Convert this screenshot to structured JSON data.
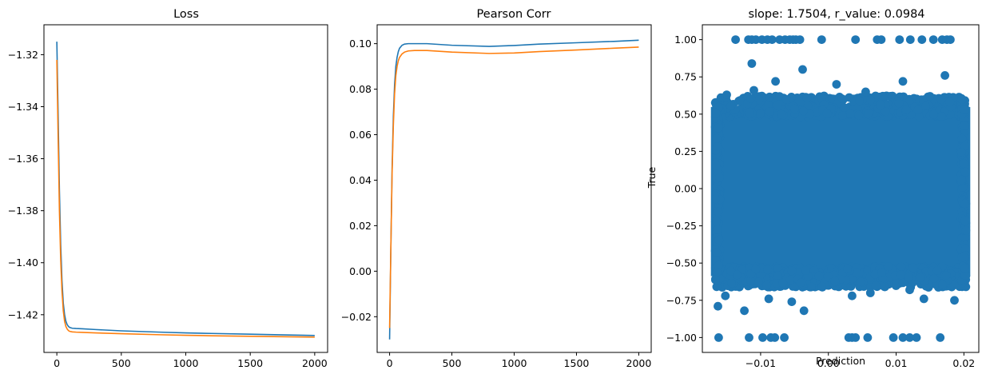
{
  "chart_data": [
    {
      "type": "line",
      "title": "Loss",
      "xlabel": "",
      "ylabel": "",
      "xlim": [
        -100,
        2100
      ],
      "ylim": [
        -1.4345,
        -1.3085
      ],
      "xticks": [
        0,
        500,
        1000,
        1500,
        2000
      ],
      "xtick_labels": [
        "0",
        "500",
        "1000",
        "1500",
        "2000"
      ],
      "yticks": [
        -1.42,
        -1.4,
        -1.38,
        -1.36,
        -1.34,
        -1.32
      ],
      "ytick_labels": [
        "−1.42",
        "−1.40",
        "−1.38",
        "−1.36",
        "−1.34",
        "−1.32"
      ],
      "grid": false,
      "series": [
        {
          "color": "#1f77b4",
          "x": [
            0,
            10,
            20,
            30,
            40,
            50,
            60,
            70,
            80,
            90,
            100,
            120,
            150,
            200,
            300,
            500,
            800,
            1000,
            1200,
            1500,
            1800,
            2000
          ],
          "y": [
            -1.315,
            -1.343,
            -1.372,
            -1.393,
            -1.407,
            -1.4155,
            -1.42,
            -1.4225,
            -1.4238,
            -1.4245,
            -1.4249,
            -1.4252,
            -1.4253,
            -1.4254,
            -1.4257,
            -1.4262,
            -1.4267,
            -1.427,
            -1.4272,
            -1.4275,
            -1.4278,
            -1.428
          ]
        },
        {
          "color": "#ff7f0e",
          "x": [
            0,
            10,
            20,
            30,
            40,
            50,
            60,
            70,
            80,
            90,
            100,
            120,
            150,
            200,
            300,
            500,
            800,
            1000,
            1200,
            1500,
            1800,
            2000
          ],
          "y": [
            -1.322,
            -1.352,
            -1.38,
            -1.399,
            -1.411,
            -1.4185,
            -1.4225,
            -1.4245,
            -1.4255,
            -1.4261,
            -1.4264,
            -1.4266,
            -1.4267,
            -1.4268,
            -1.427,
            -1.4273,
            -1.4277,
            -1.4279,
            -1.4281,
            -1.4283,
            -1.4285,
            -1.4286
          ]
        }
      ]
    },
    {
      "type": "line",
      "title": "Pearson Corr",
      "xlabel": "",
      "ylabel": "",
      "xlim": [
        -100,
        2100
      ],
      "ylim": [
        -0.0357,
        0.1083
      ],
      "xticks": [
        0,
        500,
        1000,
        1500,
        2000
      ],
      "xtick_labels": [
        "0",
        "500",
        "1000",
        "1500",
        "2000"
      ],
      "yticks": [
        -0.02,
        0.0,
        0.02,
        0.04,
        0.06,
        0.08,
        0.1
      ],
      "ytick_labels": [
        "−0.02",
        "0.00",
        "0.02",
        "0.04",
        "0.06",
        "0.08",
        "0.10"
      ],
      "grid": false,
      "series": [
        {
          "color": "#1f77b4",
          "x": [
            0,
            10,
            20,
            30,
            40,
            50,
            60,
            70,
            80,
            100,
            120,
            150,
            200,
            300,
            500,
            800,
            1000,
            1200,
            1500,
            1800,
            2000
          ],
          "y": [
            -0.03,
            0.01,
            0.045,
            0.068,
            0.082,
            0.09,
            0.094,
            0.0965,
            0.098,
            0.0993,
            0.0998,
            0.1,
            0.1,
            0.1,
            0.0993,
            0.0988,
            0.0992,
            0.0998,
            0.1004,
            0.101,
            0.1015
          ]
        },
        {
          "color": "#ff7f0e",
          "x": [
            0,
            10,
            20,
            30,
            40,
            50,
            60,
            70,
            80,
            100,
            120,
            150,
            200,
            300,
            500,
            800,
            1000,
            1200,
            1500,
            1800,
            2000
          ],
          "y": [
            -0.025,
            0.01,
            0.043,
            0.064,
            0.078,
            0.086,
            0.09,
            0.0925,
            0.094,
            0.0955,
            0.0963,
            0.0968,
            0.097,
            0.097,
            0.0963,
            0.0957,
            0.0959,
            0.0965,
            0.0972,
            0.098,
            0.0985
          ]
        }
      ]
    },
    {
      "type": "scatter",
      "title": "slope: 1.7504, r_value: 0.0984",
      "xlabel": "Prediction",
      "ylabel": "True",
      "xlim": [
        -0.0186,
        0.0222
      ],
      "ylim": [
        -1.1,
        1.1
      ],
      "xticks": [
        -0.01,
        0.0,
        0.01,
        0.02
      ],
      "xtick_labels": [
        "−0.01",
        "0.00",
        "0.01",
        "0.02"
      ],
      "yticks": [
        -1.0,
        -0.75,
        -0.5,
        -0.25,
        0.0,
        0.25,
        0.5,
        0.75,
        1.0
      ],
      "ytick_labels": [
        "−1.00",
        "−0.75",
        "−0.50",
        "−0.25",
        "0.00",
        "0.25",
        "0.50",
        "0.75",
        "1.00"
      ],
      "grid": false,
      "dense_band": {
        "x_range": [
          -0.0167,
          0.0203
        ],
        "y_range": [
          -0.62,
          0.58
        ]
      },
      "series": [
        {
          "color": "#1f77b4",
          "points": [
            [
              -0.0137,
              1.0
            ],
            [
              -0.0118,
              1.0
            ],
            [
              -0.0113,
              1.0
            ],
            [
              -0.0107,
              1.0
            ],
            [
              -0.0098,
              1.0
            ],
            [
              -0.009,
              1.0
            ],
            [
              -0.0083,
              1.0
            ],
            [
              -0.0072,
              1.0
            ],
            [
              -0.0064,
              1.0
            ],
            [
              -0.0057,
              1.0
            ],
            [
              -0.0052,
              1.0
            ],
            [
              -0.0048,
              1.0
            ],
            [
              -0.0042,
              1.0
            ],
            [
              -0.001,
              1.0
            ],
            [
              0.004,
              1.0
            ],
            [
              0.0072,
              1.0
            ],
            [
              0.0078,
              1.0
            ],
            [
              0.0105,
              1.0
            ],
            [
              0.0121,
              1.0
            ],
            [
              0.0138,
              1.0
            ],
            [
              0.0155,
              1.0
            ],
            [
              0.0168,
              1.0
            ],
            [
              0.0175,
              1.0
            ],
            [
              0.018,
              1.0
            ],
            [
              -0.0162,
              -1.0
            ],
            [
              -0.0117,
              -1.0
            ],
            [
              -0.0097,
              -1.0
            ],
            [
              -0.0085,
              -1.0
            ],
            [
              -0.0079,
              -1.0
            ],
            [
              -0.0065,
              -1.0
            ],
            [
              0.003,
              -1.0
            ],
            [
              0.0035,
              -1.0
            ],
            [
              0.004,
              -1.0
            ],
            [
              0.0058,
              -1.0
            ],
            [
              0.0096,
              -1.0
            ],
            [
              0.011,
              -1.0
            ],
            [
              0.012,
              -1.0
            ],
            [
              0.013,
              -1.0
            ],
            [
              0.0165,
              -1.0
            ],
            [
              -0.0113,
              0.84
            ],
            [
              -0.0038,
              0.8
            ],
            [
              0.0172,
              0.76
            ],
            [
              -0.0078,
              0.72
            ],
            [
              0.0012,
              0.7
            ],
            [
              0.011,
              0.72
            ],
            [
              -0.015,
              0.63
            ],
            [
              0.0055,
              0.65
            ],
            [
              0.0197,
              0.6
            ],
            [
              -0.011,
              0.66
            ],
            [
              0.015,
              0.62
            ],
            [
              -0.0163,
              -0.79
            ],
            [
              -0.0124,
              -0.82
            ],
            [
              -0.0036,
              -0.82
            ],
            [
              -0.0152,
              -0.72
            ],
            [
              -0.0088,
              -0.74
            ],
            [
              -0.0054,
              -0.76
            ],
            [
              0.0035,
              -0.72
            ],
            [
              0.0062,
              -0.7
            ],
            [
              0.0141,
              -0.74
            ],
            [
              0.0186,
              -0.75
            ],
            [
              0.012,
              -0.68
            ],
            [
              -0.0025,
              -0.66
            ]
          ]
        }
      ]
    }
  ]
}
